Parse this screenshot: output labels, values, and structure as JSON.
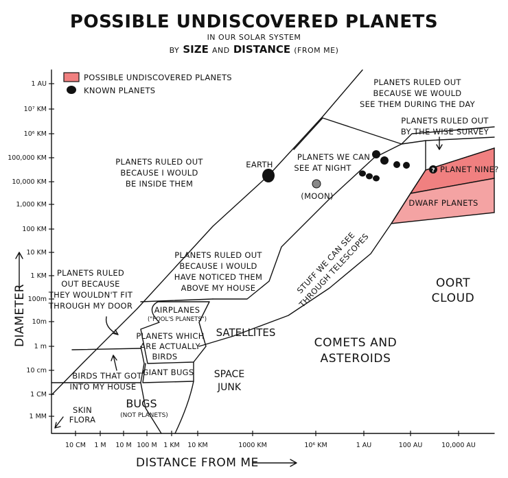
{
  "title": "POSSIBLE UNDISCOVERED PLANETS",
  "subtitle_1": "IN OUR SOLAR SYSTEM",
  "subtitle_2": {
    "a": "BY",
    "b": "SIZE",
    "c": "AND",
    "d": "DISTANCE",
    "e": "(FROM ME)"
  },
  "legend": {
    "undiscovered": "POSSIBLE UNDISCOVERED PLANETS",
    "known": "KNOWN PLANETS"
  },
  "colors": {
    "possible_planets": "#f08080",
    "dwarf_planets": "#f4a3a3",
    "known_planets": "#111111",
    "moon": "#888888"
  },
  "y_axis": {
    "title": "DIAMETER",
    "ticks": [
      "1 AU",
      "10⁷ KM",
      "10⁶ KM",
      "100,000 KM",
      "10,000 KM",
      "1,000 KM",
      "100 KM",
      "10 KM",
      "1 KM",
      "100m",
      "10m",
      "1 m",
      "10 cm",
      "1 CM",
      "1 MM"
    ]
  },
  "x_axis": {
    "title": "DISTANCE FROM ME",
    "ticks": [
      "10 CM",
      "1 M",
      "10 M",
      "100 M",
      "1 KM",
      "10 KM",
      "1000 KM",
      "10⁶ KM",
      "1 AU",
      "100 AU",
      "10,000 AU"
    ]
  },
  "regions": {
    "inside": [
      "PLANETS RULED OUT",
      "BECAUSE I WOULD",
      "BE INSIDE THEM"
    ],
    "daytime": [
      "PLANETS RULED OUT",
      "BECAUSE WE WOULD",
      "SEE THEM DURING THE DAY"
    ],
    "wise": [
      "PLANETS RULED OUT",
      "BY THE WISE SURVEY"
    ],
    "night": [
      "PLANETS WE CAN",
      "SEE AT NIGHT"
    ],
    "earth": "EARTH",
    "moon": "(MOON)",
    "planet_nine_mark": "?",
    "planet_nine": "PLANET NINE?",
    "dwarf": "DWARF PLANETS",
    "house": [
      "PLANETS RULED OUT",
      "BECAUSE I WOULD",
      "HAVE NOTICED THEM",
      "ABOVE MY HOUSE"
    ],
    "telescopes": [
      "STUFF WE CAN SEE",
      "THROUGH TELESCOPES"
    ],
    "door": [
      "PLANETS RULED",
      "OUT BECAUSE",
      "THEY WOULDN'T FIT",
      "THROUGH MY DOOR"
    ],
    "airplanes": "AIRPLANES",
    "fools": "(\"FOOL'S PLANETS\")",
    "birds": [
      "PLANETS WHICH",
      "ARE ACTUALLY",
      "BIRDS"
    ],
    "satellites": "SATELLITES",
    "oort": [
      "OORT",
      "CLOUD"
    ],
    "comets": [
      "COMETS AND",
      "ASTEROIDS"
    ],
    "birds_house": [
      "BIRDS THAT GOT",
      "INTO MY HOUSE"
    ],
    "giant_bugs": "GIANT BUGS",
    "space_junk": [
      "SPACE",
      "JUNK"
    ],
    "bugs": "BUGS",
    "not_planets": "(NOT PLANETS)",
    "skin": [
      "SKIN",
      "FLORA"
    ]
  }
}
